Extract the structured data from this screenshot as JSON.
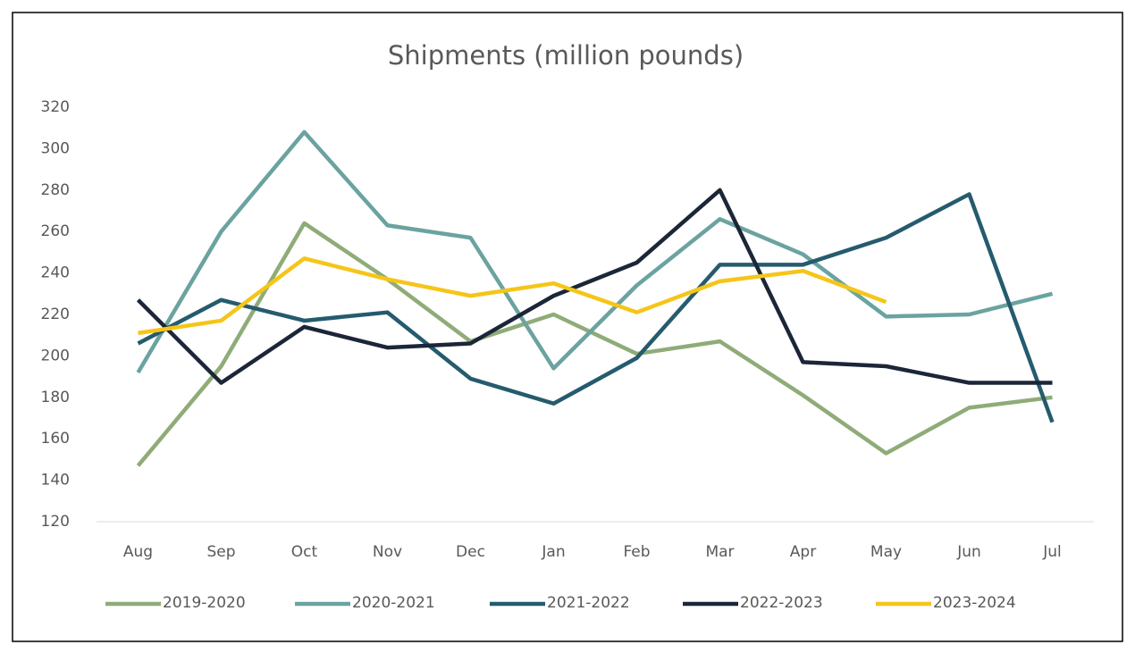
{
  "chart_data": {
    "type": "line",
    "title": "Shipments (million pounds)",
    "categories": [
      "Aug",
      "Sep",
      "Oct",
      "Nov",
      "Dec",
      "Jan",
      "Feb",
      "Mar",
      "Apr",
      "May",
      "Jun",
      "Jul"
    ],
    "series": [
      {
        "name": "2019-2020",
        "color": "#8fac78",
        "values": [
          147,
          195,
          264,
          237,
          207,
          220,
          201,
          207,
          181,
          153,
          175,
          180
        ]
      },
      {
        "name": "2020-2021",
        "color": "#6aa3a0",
        "values": [
          192,
          260,
          308,
          263,
          257,
          194,
          234,
          266,
          249,
          219,
          220,
          230
        ]
      },
      {
        "name": "2021-2022",
        "color": "#255b6e",
        "values": [
          206,
          227,
          217,
          221,
          189,
          177,
          199,
          244,
          244,
          257,
          278,
          168
        ]
      },
      {
        "name": "2022-2023",
        "color": "#1c2638",
        "values": [
          227,
          187,
          214,
          204,
          206,
          229,
          245,
          280,
          197,
          195,
          187,
          187
        ]
      },
      {
        "name": "2023-2024",
        "color": "#f5c518",
        "values": [
          211,
          217,
          247,
          237,
          229,
          235,
          221,
          236,
          241,
          226,
          null,
          null
        ]
      }
    ],
    "ylim": [
      120,
      320
    ],
    "yticks": [
      120,
      140,
      160,
      180,
      200,
      220,
      240,
      260,
      280,
      300,
      320
    ],
    "grid": false,
    "legend": "bottom"
  }
}
